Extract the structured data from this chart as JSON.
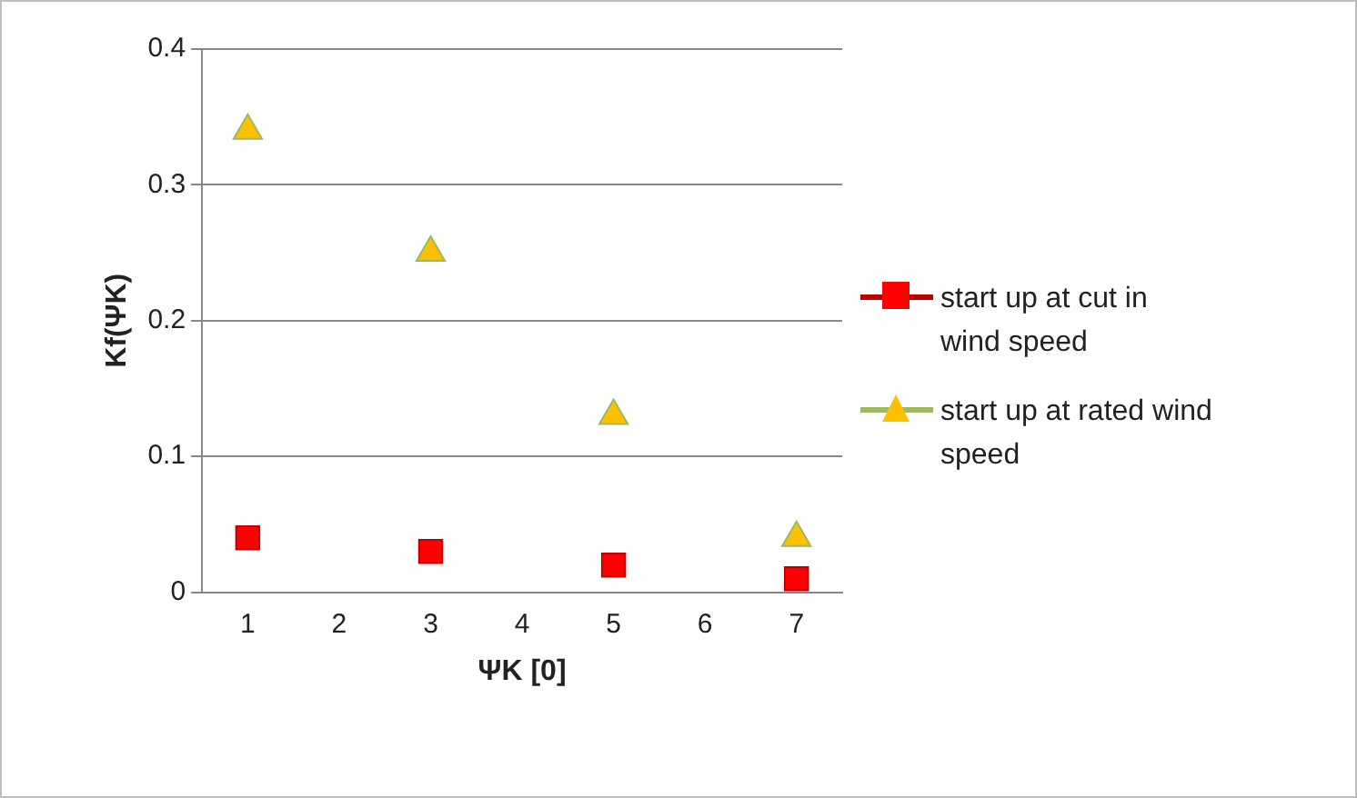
{
  "chart_data": {
    "type": "scatter",
    "xlabel": "ΨK [0]",
    "ylabel": "Kf(ΨK)",
    "categories": [
      "1",
      "2",
      "3",
      "4",
      "5",
      "6",
      "7"
    ],
    "series": [
      {
        "name": "start up at cut in wind speed",
        "color": "#ff0000",
        "marker": "square",
        "values": [
          0.04,
          null,
          0.03,
          null,
          0.02,
          null,
          0.01
        ]
      },
      {
        "name": "start up at rated wind speed",
        "color": "#ffc000",
        "marker": "triangle",
        "values": [
          0.34,
          null,
          0.25,
          null,
          0.13,
          null,
          0.04
        ]
      }
    ],
    "ylim": [
      0,
      0.4
    ],
    "yticks": [
      0,
      0.1,
      0.2,
      0.3,
      0.4
    ],
    "grid": "y",
    "legend": "right"
  }
}
